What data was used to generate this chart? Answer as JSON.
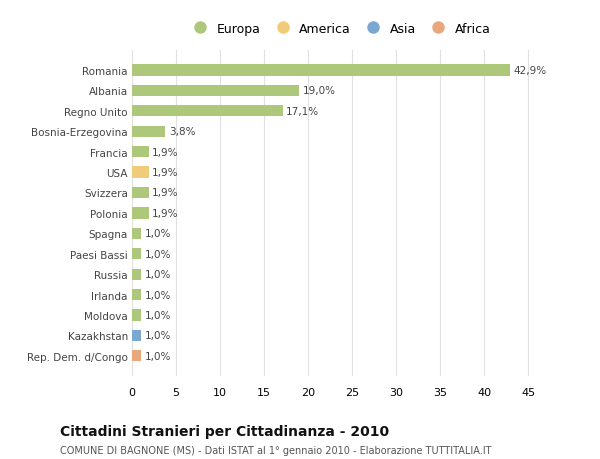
{
  "categories": [
    "Rep. Dem. d/Congo",
    "Kazakhstan",
    "Moldova",
    "Irlanda",
    "Russia",
    "Paesi Bassi",
    "Spagna",
    "Polonia",
    "Svizzera",
    "USA",
    "Francia",
    "Bosnia-Erzegovina",
    "Regno Unito",
    "Albania",
    "Romania"
  ],
  "values": [
    1.0,
    1.0,
    1.0,
    1.0,
    1.0,
    1.0,
    1.0,
    1.9,
    1.9,
    1.9,
    1.9,
    3.8,
    17.1,
    19.0,
    42.9
  ],
  "bar_colors": [
    "#e8a87c",
    "#7ba7d0",
    "#adc87a",
    "#adc87a",
    "#adc87a",
    "#adc87a",
    "#adc87a",
    "#adc87a",
    "#adc87a",
    "#f0cb7a",
    "#adc87a",
    "#adc87a",
    "#adc87a",
    "#adc87a",
    "#adc87a"
  ],
  "labels": [
    "1,0%",
    "1,0%",
    "1,0%",
    "1,0%",
    "1,0%",
    "1,0%",
    "1,0%",
    "1,9%",
    "1,9%",
    "1,9%",
    "1,9%",
    "3,8%",
    "17,1%",
    "19,0%",
    "42,9%"
  ],
  "legend_labels": [
    "Europa",
    "America",
    "Asia",
    "Africa"
  ],
  "legend_colors": [
    "#adc87a",
    "#f0cb7a",
    "#7ba7d0",
    "#e8a87c"
  ],
  "title": "Cittadini Stranieri per Cittadinanza - 2010",
  "subtitle": "COMUNE DI BAGNONE (MS) - Dati ISTAT al 1° gennaio 2010 - Elaborazione TUTTITALIA.IT",
  "xlim": [
    0,
    47
  ],
  "xticks": [
    0,
    5,
    10,
    15,
    20,
    25,
    30,
    35,
    40,
    45
  ],
  "background_color": "#ffffff",
  "grid_color": "#e0e0e0"
}
